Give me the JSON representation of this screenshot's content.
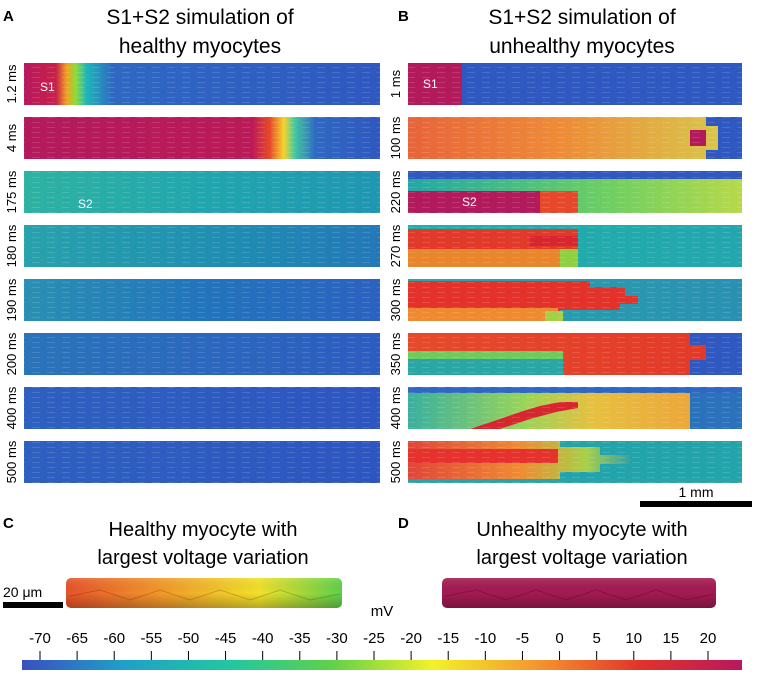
{
  "panels": {
    "A": {
      "letter": "A",
      "title_line1": "S1+S2 simulation of",
      "title_line2": "healthy myocytes"
    },
    "B": {
      "letter": "B",
      "title_line1": "S1+S2 simulation of",
      "title_line2": "unhealthy myocytes"
    },
    "C": {
      "letter": "C",
      "title_line1": "Healthy myocyte with",
      "title_line2": "largest voltage variation"
    },
    "D": {
      "letter": "D",
      "title_line1": "Unhealthy myocyte with",
      "title_line2": "largest voltage variation"
    }
  },
  "healthy_rows": [
    {
      "time": "1.2 ms",
      "stim": "S1"
    },
    {
      "time": "4 ms",
      "stim": ""
    },
    {
      "time": "175 ms",
      "stim": "S2"
    },
    {
      "time": "180 ms",
      "stim": ""
    },
    {
      "time": "190 ms",
      "stim": ""
    },
    {
      "time": "200 ms",
      "stim": ""
    },
    {
      "time": "400 ms",
      "stim": ""
    },
    {
      "time": "500 ms",
      "stim": ""
    }
  ],
  "unhealthy_rows": [
    {
      "time": "1 ms",
      "stim": "S1"
    },
    {
      "time": "100 ms",
      "stim": ""
    },
    {
      "time": "220 ms",
      "stim": "S2"
    },
    {
      "time": "270 ms",
      "stim": ""
    },
    {
      "time": "300 ms",
      "stim": ""
    },
    {
      "time": "350 ms",
      "stim": ""
    },
    {
      "time": "400 ms",
      "stim": ""
    },
    {
      "time": "500 ms",
      "stim": ""
    }
  ],
  "scalebars": {
    "tissue": "1 mm",
    "cell": "20 μm"
  },
  "colorbar": {
    "unit": "mV",
    "ticks": [
      "-70",
      "-65",
      "-60",
      "-55",
      "-50",
      "-45",
      "-40",
      "-35",
      "-30",
      "-25",
      "-20",
      "-15",
      "-10",
      "-5",
      "0",
      "5",
      "10",
      "15",
      "20"
    ],
    "colors": [
      "#3a4fc0",
      "#1ea0c8",
      "#22c7a0",
      "#5fd14a",
      "#f2f227",
      "#f59a2e",
      "#e2322a",
      "#b8185e"
    ]
  }
}
